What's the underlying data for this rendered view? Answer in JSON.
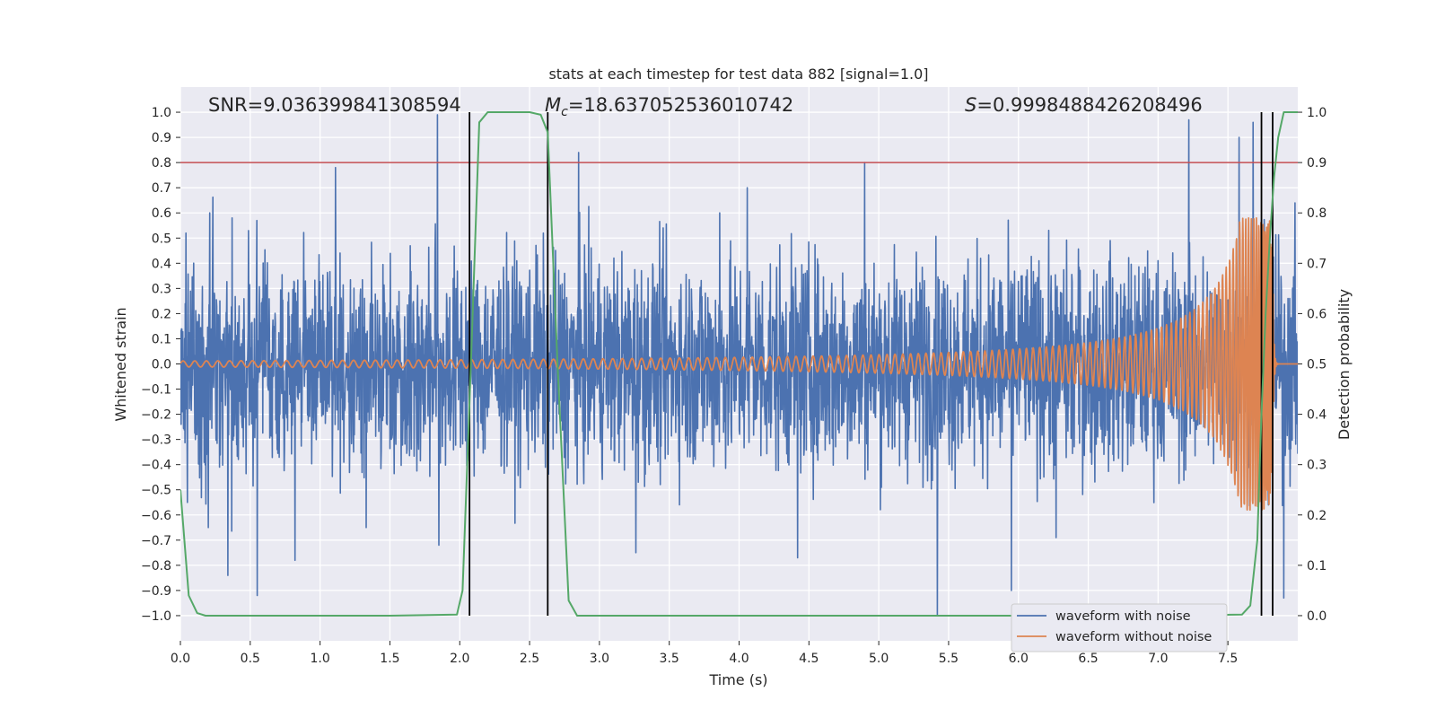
{
  "chart_data": {
    "type": "line",
    "title": "stats at each timestep for test data 882 [signal=1.0]",
    "xlabel": "Time (s)",
    "ylabel": "Whitened strain",
    "y2label": "Detection probability",
    "xlim": [
      0.0,
      8.0
    ],
    "ylim": [
      -1.1,
      1.1
    ],
    "y2lim": [
      -0.05,
      1.05
    ],
    "x_ticks": [
      "0.0",
      "0.5",
      "1.0",
      "1.5",
      "2.0",
      "2.5",
      "3.0",
      "3.5",
      "4.0",
      "4.5",
      "5.0",
      "5.5",
      "6.0",
      "6.5",
      "7.0",
      "7.5"
    ],
    "y_ticks": [
      "1.0",
      "0.9",
      "0.8",
      "0.7",
      "0.6",
      "0.5",
      "0.4",
      "0.3",
      "0.2",
      "0.1",
      "0.0",
      "−0.1",
      "−0.2",
      "−0.3",
      "−0.4",
      "−0.5",
      "−0.6",
      "−0.7",
      "−0.8",
      "−0.9",
      "−1.0"
    ],
    "y2_ticks": [
      "1.0",
      "0.9",
      "0.8",
      "0.7",
      "0.6",
      "0.5",
      "0.4",
      "0.3",
      "0.2",
      "0.1",
      "0.0"
    ],
    "annotations": {
      "snr": "SNR=9.036399841308594",
      "mc_symbol": "M",
      "mc_sub": "c",
      "mc_value": "=18.637052536010742",
      "s_symbol": "S",
      "s_value": "=0.9998488426208496"
    },
    "threshold_line": {
      "value": 0.9,
      "axis": "y2",
      "color": "#c44e52"
    },
    "vertical_lines_x": [
      2.07,
      2.63,
      7.74,
      7.82
    ],
    "series": [
      {
        "name": "waveform with noise",
        "color": "#4c72b0",
        "description": "dense noise band",
        "typical_amplitude": 0.38,
        "spike_samples": [
          {
            "x": 0.04,
            "y": 0.52
          },
          {
            "x": 0.05,
            "y": -0.55
          },
          {
            "x": 0.2,
            "y": -0.65
          },
          {
            "x": 0.21,
            "y": 0.6
          },
          {
            "x": 0.34,
            "y": -0.84
          },
          {
            "x": 0.37,
            "y": 0.58
          },
          {
            "x": 0.55,
            "y": -0.92
          },
          {
            "x": 0.82,
            "y": -0.78
          },
          {
            "x": 1.11,
            "y": 0.78
          },
          {
            "x": 1.33,
            "y": -0.65
          },
          {
            "x": 1.84,
            "y": 0.99
          },
          {
            "x": 1.85,
            "y": -0.72
          },
          {
            "x": 2.85,
            "y": 0.84
          },
          {
            "x": 3.26,
            "y": -0.75
          },
          {
            "x": 3.86,
            "y": 0.6
          },
          {
            "x": 4.06,
            "y": 0.7
          },
          {
            "x": 4.42,
            "y": -0.77
          },
          {
            "x": 4.9,
            "y": 0.8
          },
          {
            "x": 5.42,
            "y": -1.0
          },
          {
            "x": 5.95,
            "y": -0.9
          },
          {
            "x": 6.27,
            "y": -0.69
          },
          {
            "x": 7.22,
            "y": 0.97
          },
          {
            "x": 7.58,
            "y": 0.9
          },
          {
            "x": 7.68,
            "y": 0.96
          },
          {
            "x": 7.79,
            "y": -0.56
          },
          {
            "x": 7.9,
            "y": -0.93
          },
          {
            "x": 7.98,
            "y": 0.64
          }
        ]
      },
      {
        "name": "waveform without noise",
        "color": "#dd8452",
        "description": "chirp",
        "start_amplitude": 0.012,
        "peak_amplitude": 0.58,
        "merger_x": 7.82,
        "start_frequency_hz": 14,
        "end_frequency_hz": 60
      },
      {
        "name": "detection probability",
        "color": "#55a868",
        "axis": "y2",
        "x": [
          0.0,
          0.06,
          0.12,
          0.18,
          0.25,
          0.5,
          1.0,
          1.5,
          1.98,
          2.02,
          2.08,
          2.14,
          2.2,
          2.5,
          2.58,
          2.63,
          2.7,
          2.78,
          2.84,
          3.0,
          4.0,
          5.0,
          6.0,
          7.0,
          7.6,
          7.66,
          7.71,
          7.74,
          7.77,
          7.8,
          7.83,
          7.86,
          7.9,
          7.95,
          8.0
        ],
        "values": [
          0.25,
          0.04,
          0.005,
          0.0,
          0.0,
          0.0,
          0.0,
          0.0,
          0.002,
          0.05,
          0.5,
          0.98,
          1.0,
          1.0,
          0.995,
          0.96,
          0.5,
          0.03,
          0.0,
          0.0,
          0.0,
          0.0,
          0.0,
          0.0,
          0.002,
          0.02,
          0.15,
          0.4,
          0.6,
          0.75,
          0.87,
          0.95,
          1.0,
          1.0,
          1.0
        ]
      }
    ],
    "legend": {
      "location": "lower-right",
      "entries": [
        "waveform with noise",
        "waveform without noise"
      ]
    }
  }
}
